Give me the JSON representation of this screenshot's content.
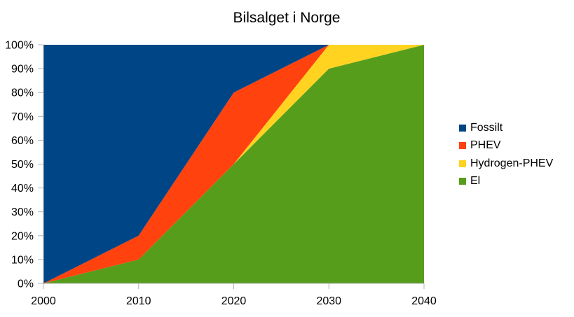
{
  "chart_data": {
    "type": "area",
    "stacked": true,
    "title": "Bilsalget i Norge",
    "xlabel": "",
    "ylabel": "",
    "x": [
      2000,
      2010,
      2020,
      2030,
      2040
    ],
    "x_tick_labels": [
      "2000",
      "2010",
      "2020",
      "2030",
      "2040"
    ],
    "y_tick_labels": [
      "0%",
      "10%",
      "20%",
      "30%",
      "40%",
      "50%",
      "60%",
      "70%",
      "80%",
      "90%",
      "100%"
    ],
    "ylim": [
      0,
      100
    ],
    "grid": false,
    "legend_position": "right",
    "series": [
      {
        "name": "El",
        "color": "#579d1c",
        "values": [
          0,
          10,
          50,
          90,
          100
        ]
      },
      {
        "name": "Hydrogen-PHEV",
        "color": "#ffd320",
        "values": [
          0,
          0,
          0,
          10,
          0
        ]
      },
      {
        "name": "PHEV",
        "color": "#ff420e",
        "values": [
          0,
          10,
          30,
          0,
          0
        ]
      },
      {
        "name": "Fossilt",
        "color": "#004586",
        "values": [
          100,
          80,
          20,
          0,
          0
        ]
      }
    ],
    "legend_order": [
      "Fossilt",
      "PHEV",
      "Hydrogen-PHEV",
      "El"
    ]
  }
}
